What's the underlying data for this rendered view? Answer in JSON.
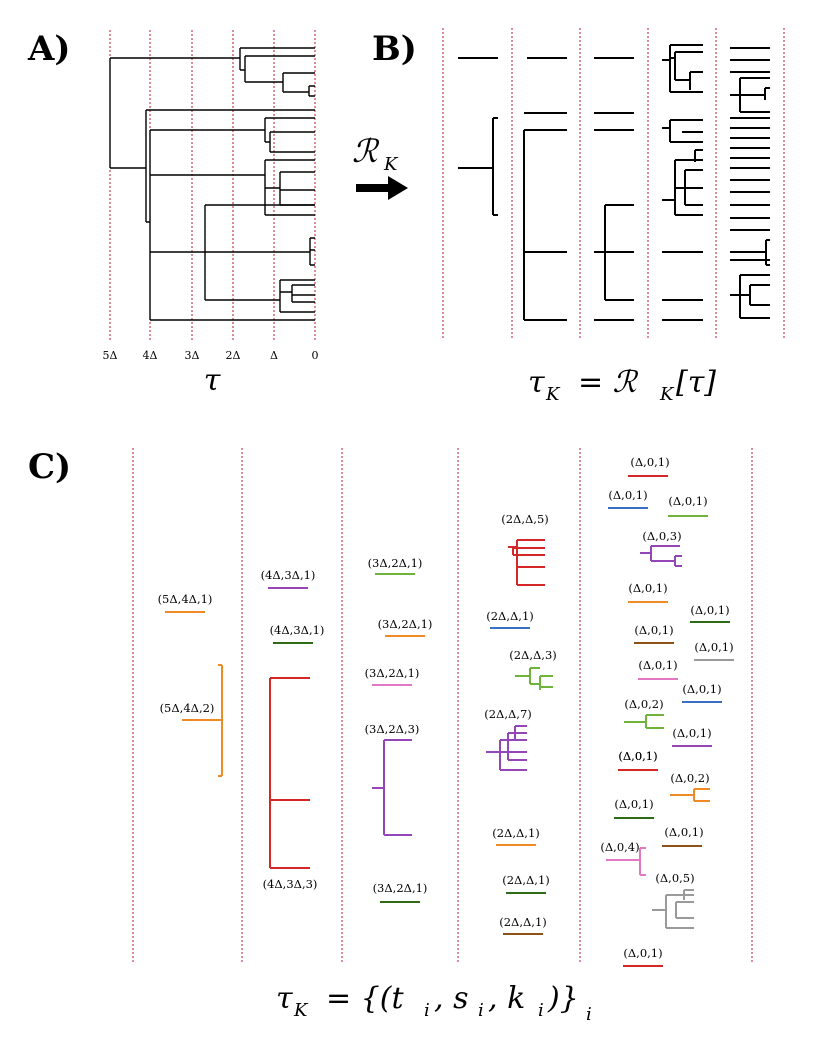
{
  "panels": {
    "a": "A)",
    "b": "B)",
    "c": "C)"
  },
  "panel_a": {
    "axis_ticks": [
      "5Δ",
      "4Δ",
      "3Δ",
      "2Δ",
      "Δ",
      "0"
    ],
    "tree_label": "τ"
  },
  "arrow_label": "ℛ",
  "arrow_label_sub": "K",
  "panel_b": {
    "formula_lhs": "τ",
    "formula_lhs_sub": "K",
    "formula_rhs": "= ℛ",
    "formula_rhs_sub": "K",
    "formula_arg": "[τ]"
  },
  "panel_c": {
    "formula": "τ",
    "formula_sub": "K",
    "formula_rhs": "= {(t",
    "formula_t_sub": "i",
    "formula_mid": ", s",
    "formula_s_sub": "i",
    "formula_mid2": ", k",
    "formula_k_sub": "i",
    "formula_end": ")}",
    "formula_end_sub": "i",
    "tuples": {
      "c1a": "(5Δ,4Δ,1)",
      "c1b": "(5Δ,4Δ,2)",
      "c2a": "(4Δ,3Δ,1)",
      "c2b": "(4Δ,3Δ,1)",
      "c2c": "(4Δ,3Δ,3)",
      "c3a": "(3Δ,2Δ,1)",
      "c3b": "(3Δ,2Δ,1)",
      "c3c": "(3Δ,2Δ,1)",
      "c3d": "(3Δ,2Δ,3)",
      "c3e": "(3Δ,2Δ,1)",
      "c4a": "(2Δ,Δ,5)",
      "c4b": "(2Δ,Δ,1)",
      "c4c": "(2Δ,Δ,3)",
      "c4d": "(2Δ,Δ,7)",
      "c4e": "(2Δ,Δ,1)",
      "c4f": "(2Δ,Δ,1)",
      "c4g": "(2Δ,Δ,1)",
      "c5a": "(Δ,0,1)",
      "c5b": "(Δ,0,1)",
      "c5c": "(Δ,0,1)",
      "c5d": "(Δ,0,3)",
      "c5e": "(Δ,0,1)",
      "c5f": "(Δ,0,1)",
      "c5g": "(Δ,0,1)",
      "c5h": "(Δ,0,1)",
      "c5i": "(Δ,0,1)",
      "c5j": "(Δ,0,1)",
      "c5k": "(Δ,0,2)",
      "c5l": "(Δ,0,1)",
      "c5m": "(Δ,0,1)",
      "c5n": "(Δ,0,1)",
      "c5o": "(Δ,0,2)",
      "c5p": "(Δ,0,1)",
      "c5q": "(Δ,0,1)",
      "c5r": "(Δ,0,4)",
      "c5s": "(Δ,0,5)",
      "c5t": "(Δ,0,1)"
    }
  },
  "colors": {
    "grid": "#c0182a",
    "tree": "#000000",
    "orange": "#f08a24",
    "red": "#d62728",
    "purple": "#9445b8",
    "green": "#2f6b16",
    "lightgreen": "#6fb33a",
    "pink": "#e377c2",
    "blue": "#3b6fc4",
    "brown": "#8c5218",
    "gray": "#9a9a9a"
  }
}
